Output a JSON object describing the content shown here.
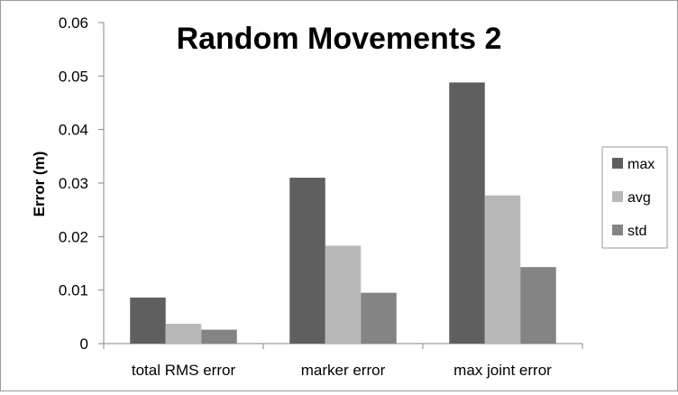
{
  "chart_data": {
    "type": "bar",
    "title": "Random Movements 2",
    "xlabel": "",
    "ylabel": "Error (m)",
    "categories": [
      "total RMS error",
      "marker error",
      "max joint error"
    ],
    "series": [
      {
        "name": "max",
        "values": [
          0.0086,
          0.031,
          0.0488
        ],
        "color": "#5f5f5f"
      },
      {
        "name": "avg",
        "values": [
          0.0037,
          0.0183,
          0.0277
        ],
        "color": "#b8b8b8"
      },
      {
        "name": "std",
        "values": [
          0.0026,
          0.0095,
          0.0143
        ],
        "color": "#848484"
      }
    ],
    "ylim": [
      0,
      0.06
    ],
    "yticks": [
      0,
      0.01,
      0.02,
      0.03,
      0.04,
      0.05,
      0.06
    ],
    "ytick_labels": [
      "0",
      "0.01",
      "0.02",
      "0.03",
      "0.04",
      "0.05",
      "0.06"
    ],
    "grid": false,
    "legend_position": "right"
  }
}
